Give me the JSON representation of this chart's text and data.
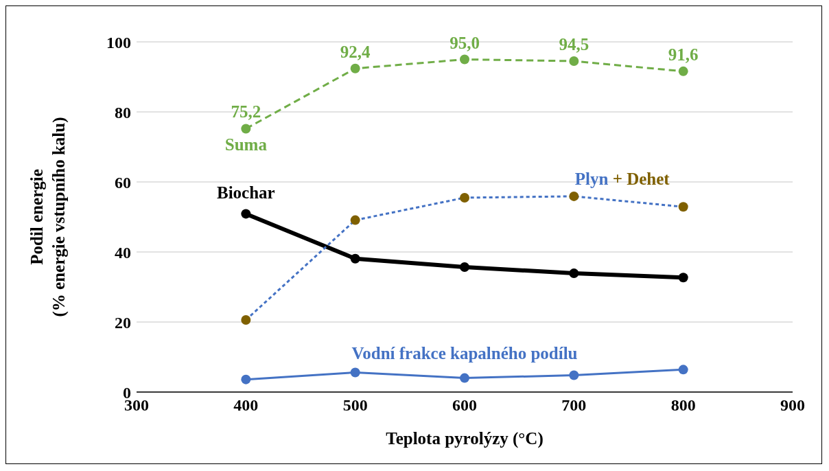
{
  "chart_data": {
    "type": "line",
    "xlabel": "Teplota pyrolýzy (°C)",
    "ylabel": "Podil energie\n(% energie vstupního kalu)",
    "x": [
      400,
      500,
      600,
      700,
      800
    ],
    "xlim": [
      300,
      900
    ],
    "xticks": [
      300,
      400,
      500,
      600,
      700,
      800,
      900
    ],
    "ylim": [
      0,
      100
    ],
    "yticks": [
      0,
      20,
      40,
      60,
      80,
      100
    ],
    "grid": "y",
    "legend": false,
    "marker": "circle",
    "series": [
      {
        "name": "Suma",
        "color": "#70ad47",
        "line_style": "dashed",
        "values": [
          75.2,
          92.4,
          95.0,
          94.5,
          91.6
        ],
        "value_labels": [
          "75,2",
          "92,4",
          "95,0",
          "94,5",
          "91,6"
        ]
      },
      {
        "name": "Biochar",
        "color": "#000000",
        "line_style": "solid",
        "values": [
          50.9,
          38.1,
          35.7,
          33.9,
          32.7
        ]
      },
      {
        "name": "Plyn + Dehet",
        "color": "#4472c4",
        "colors": [
          "#7f6000",
          "#7f6000",
          "#7f6000",
          "#7f6000",
          "#7f6000"
        ],
        "line_style": "dotted",
        "values": [
          20.6,
          49.1,
          55.5,
          55.9,
          52.9
        ]
      },
      {
        "name": "Vodní frakce kapalného podílu",
        "color": "#4472c4",
        "line_style": "solid",
        "values": [
          3.6,
          5.6,
          4.0,
          4.8,
          6.4
        ]
      }
    ]
  }
}
